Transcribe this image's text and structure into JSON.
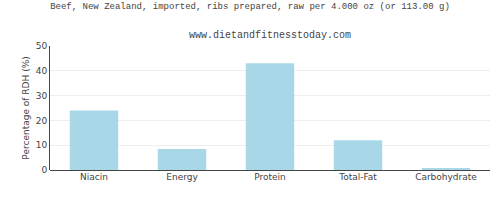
{
  "chart_data": {
    "type": "bar",
    "title": "Beef, New Zealand, imported, ribs prepared, raw per 4.000 oz (or 113.00 g)",
    "subtitle": "www.dietandfitnesstoday.com",
    "categories": [
      "Niacin",
      "Energy",
      "Protein",
      "Total-Fat",
      "Carbohydrate"
    ],
    "values": [
      24,
      8.5,
      43,
      12,
      0.5
    ],
    "color": "#a8d8e8",
    "ylabel": "Percentage of RDH (%)",
    "ylim": [
      0,
      50
    ],
    "yticks": [
      0,
      10,
      20,
      30,
      40,
      50
    ],
    "grid": true
  }
}
